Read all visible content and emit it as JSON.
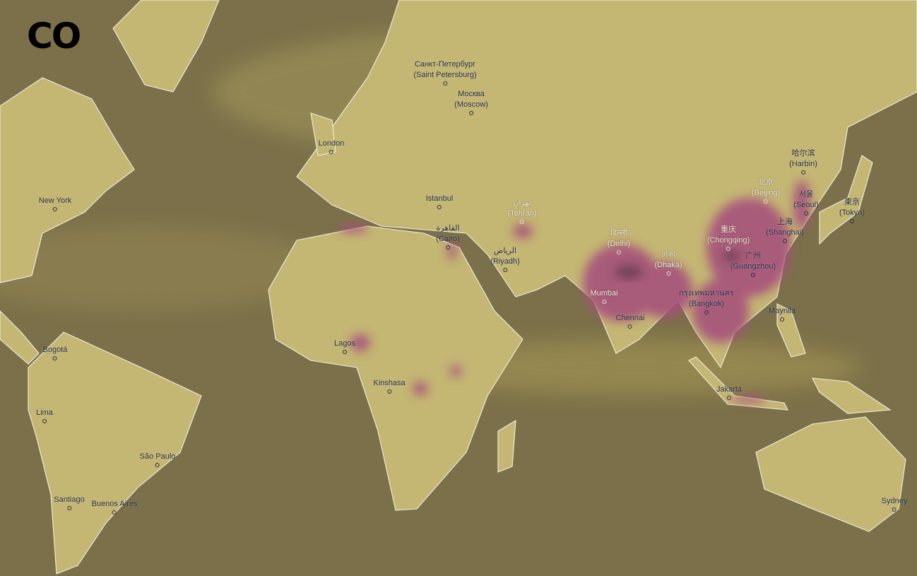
{
  "layer": {
    "title": "CO"
  },
  "colors": {
    "ocean": "#7b7049",
    "land": "#c4b673",
    "high_concentration": "#a64f7c",
    "borders": "#f2efe2",
    "label": "#26304a"
  },
  "cities": [
    {
      "name": "New York",
      "native": ""
    },
    {
      "name": "London",
      "native": ""
    },
    {
      "name": "(Saint Petersburg)",
      "native": "Санкт-Петербург"
    },
    {
      "name": "(Moscow)",
      "native": "Москва"
    },
    {
      "name": "Istanbul",
      "native": ""
    },
    {
      "name": "(Cairo)",
      "native": "القاهرة"
    },
    {
      "name": "(Tehran)",
      "native": "تهران"
    },
    {
      "name": "(Riyadh)",
      "native": "الرياض"
    },
    {
      "name": "(Delhi)",
      "native": "दिल्ली"
    },
    {
      "name": "(Dhaka)",
      "native": "ঢাকা"
    },
    {
      "name": "Mumbai",
      "native": ""
    },
    {
      "name": "Chennai",
      "native": ""
    },
    {
      "name": "(Bangkok)",
      "native": "กรุงเทพมหานคร"
    },
    {
      "name": "(Chongqing)",
      "native": "重庆"
    },
    {
      "name": "(Guangzhou)",
      "native": "广州"
    },
    {
      "name": "(Shanghai)",
      "native": "上海"
    },
    {
      "name": "(Beijing)",
      "native": "北京"
    },
    {
      "name": "(Harbin)",
      "native": "哈尔滨"
    },
    {
      "name": "(Seoul)",
      "native": "서울"
    },
    {
      "name": "(Tokyo)",
      "native": "東京"
    },
    {
      "name": "Maynila",
      "native": ""
    },
    {
      "name": "Jakarta",
      "native": ""
    },
    {
      "name": "Lagos",
      "native": ""
    },
    {
      "name": "Kinshasa",
      "native": ""
    },
    {
      "name": "Bogotá",
      "native": ""
    },
    {
      "name": "Lima",
      "native": ""
    },
    {
      "name": "São Paulo",
      "native": ""
    },
    {
      "name": "Santiago",
      "native": ""
    },
    {
      "name": "Buenos Aires",
      "native": ""
    },
    {
      "name": "Sydney",
      "native": ""
    }
  ]
}
